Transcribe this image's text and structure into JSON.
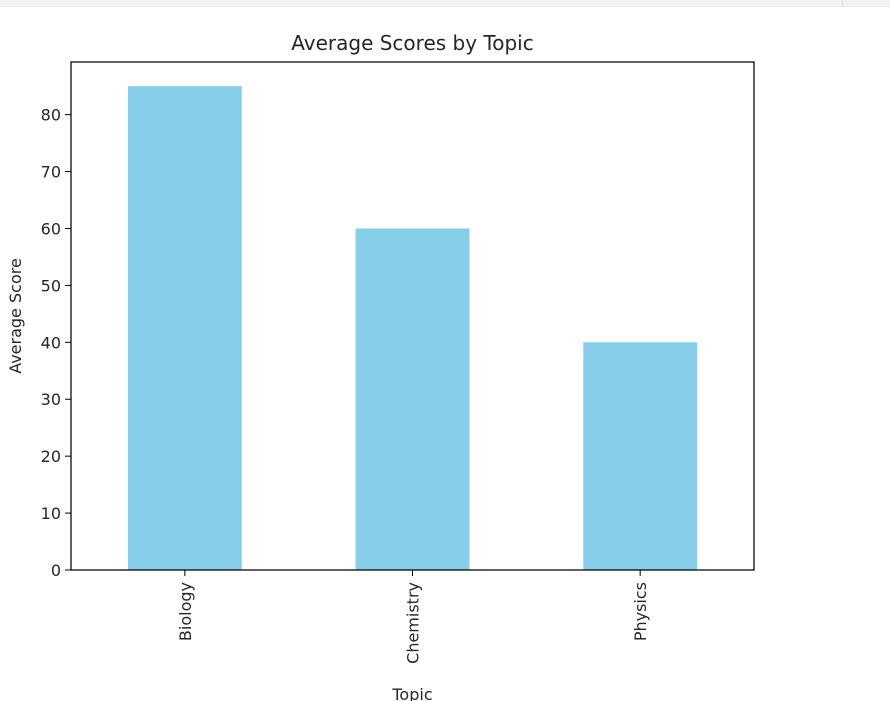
{
  "chart_data": {
    "type": "bar",
    "title": "Average Scores by Topic",
    "xlabel": "Topic",
    "ylabel": "Average Score",
    "categories": [
      "Biology",
      "Chemistry",
      "Physics"
    ],
    "values": [
      85,
      60,
      40
    ],
    "ylim": [
      0,
      89.25
    ],
    "yticks": [
      0,
      10,
      20,
      30,
      40,
      50,
      60,
      70,
      80
    ],
    "grid": false,
    "bar_color": "#87ceeb"
  }
}
